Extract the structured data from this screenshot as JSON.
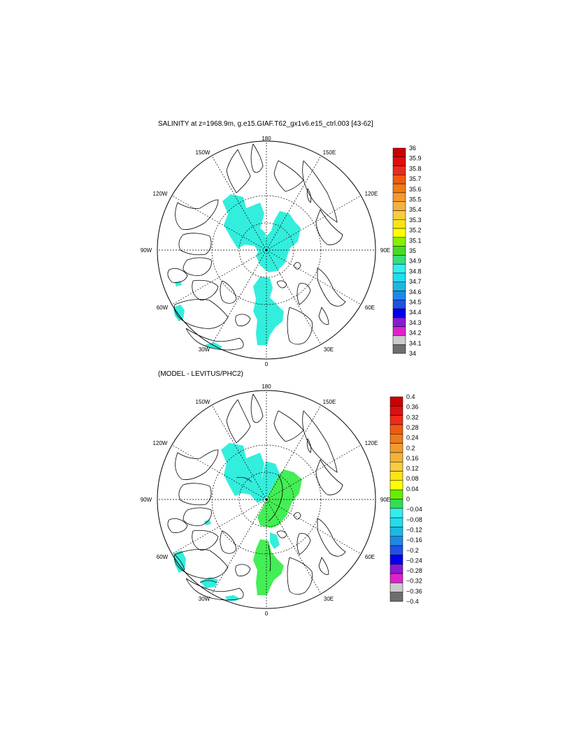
{
  "panel_top": {
    "title": "SALINITY at z=1968.9m, g.e15.GIAF.T62_gx1v6.e15_ctrl.003 [43-62]",
    "lon_labels": {
      "top": "180",
      "bottom": "0",
      "nw": "150W",
      "ne": "150E",
      "wnw": "120W",
      "ene": "120E",
      "w": "90W",
      "e": "90E",
      "wsw": "60W",
      "ese": "60E",
      "sw": "30W",
      "se": "30E"
    },
    "colorbar": {
      "labels": [
        "36",
        "35.9",
        "35.8",
        "35.7",
        "35.6",
        "35.5",
        "35.4",
        "35.3",
        "35.2",
        "35.1",
        "35",
        "34.9",
        "34.8",
        "34.7",
        "34.6",
        "34.5",
        "34.4",
        "34.3",
        "34.2",
        "34.1",
        "34"
      ],
      "colors": [
        "#cc0000",
        "#dd0f0f",
        "#ee2a1a",
        "#f05a10",
        "#ef7a18",
        "#f29a30",
        "#f4b23a",
        "#f8cc3e",
        "#f9e418",
        "#ffff00",
        "#88ee00",
        "#44dd22",
        "#38dd80",
        "#33eeee",
        "#22ddee",
        "#1cb8e0",
        "#1e88e6",
        "#2050e8",
        "#0000e8",
        "#8a1ad0",
        "#dd22cc",
        "#cccccc",
        "#6e6e6e"
      ]
    },
    "field_color": "#33eedd"
  },
  "panel_bottom": {
    "title": "(MODEL - LEVITUS/PHC2)",
    "lon_labels": {
      "top": "180",
      "bottom": "0",
      "nw": "150W",
      "ne": "150E",
      "wnw": "120W",
      "ene": "120E",
      "w": "90W",
      "e": "90E",
      "wsw": "60W",
      "ese": "60E",
      "sw": "30W",
      "se": "30E"
    },
    "colorbar": {
      "labels": [
        "0.4",
        "0.36",
        "0.32",
        "0.28",
        "0.24",
        "0.2",
        "0.16",
        "0.12",
        "0.08",
        "0.04",
        "0",
        "−0.04",
        "−0.08",
        "−0.12",
        "−0.16",
        "−0.2",
        "−0.24",
        "−0.28",
        "−0.32",
        "−0.36",
        "−0.4"
      ],
      "colors": [
        "#cc0000",
        "#dd0f0f",
        "#ee2a1a",
        "#f05a10",
        "#ef7a18",
        "#f29a30",
        "#f4b23a",
        "#f8cc3e",
        "#f9e418",
        "#ffff00",
        "#66ee00",
        "#33dd55",
        "#33eeee",
        "#22ddee",
        "#1cb8e0",
        "#1e88e6",
        "#2050e8",
        "#0000e8",
        "#8a1ad0",
        "#dd22cc",
        "#cccccc",
        "#6e6e6e"
      ]
    },
    "positive_color": "#44ee55",
    "negative_color": "#33eedd"
  }
}
